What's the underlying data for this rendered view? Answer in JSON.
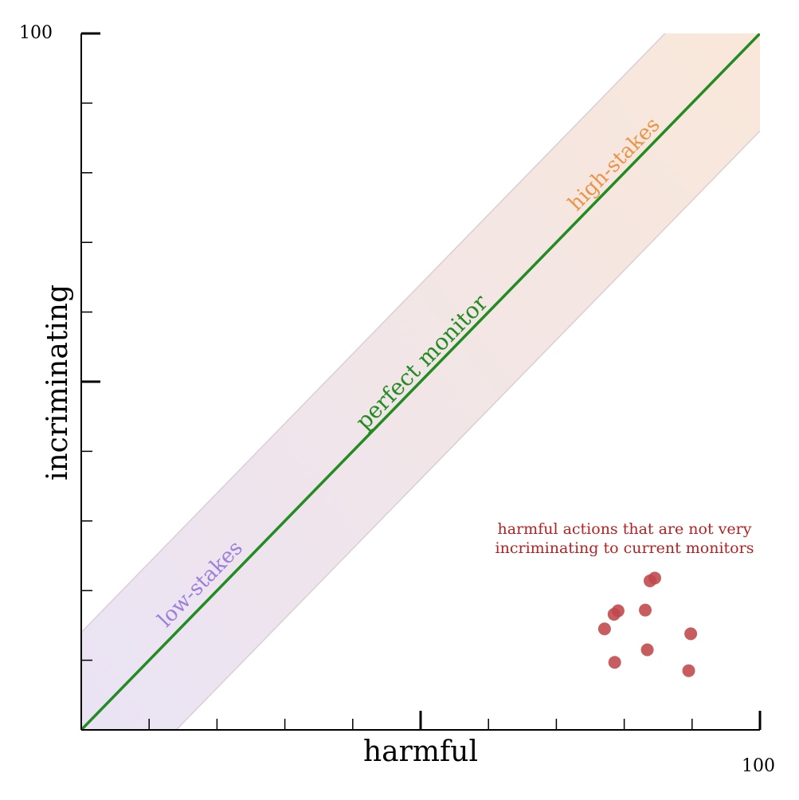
{
  "chart_data": {
    "type": "scatter",
    "title": "",
    "xlabel": "harmful",
    "ylabel": "incriminating",
    "xlim": [
      0,
      100
    ],
    "ylim": [
      0,
      100
    ],
    "x_max_label": "100",
    "y_max_label": "100",
    "grid": false,
    "diagonal": {
      "label": "perfect monitor",
      "from": [
        0,
        0
      ],
      "to": [
        100,
        100
      ],
      "color": "#228b22"
    },
    "band": {
      "half_width": 14,
      "label_low": "low-stakes",
      "label_high": "high-stakes",
      "color_low": "#9b7fd9",
      "color_high": "#e8954a"
    },
    "annotation": {
      "lines": [
        "harmful actions that are not very",
        "incriminating to current monitors"
      ],
      "color": "#b22222"
    },
    "points_color": "#c0474a",
    "points": [
      {
        "x": 84.5,
        "y": 21.8
      },
      {
        "x": 83.8,
        "y": 21.4
      },
      {
        "x": 79.1,
        "y": 17.1
      },
      {
        "x": 78.5,
        "y": 16.6
      },
      {
        "x": 83.1,
        "y": 17.2
      },
      {
        "x": 77.1,
        "y": 14.5
      },
      {
        "x": 89.8,
        "y": 13.8
      },
      {
        "x": 83.4,
        "y": 11.5
      },
      {
        "x": 78.6,
        "y": 9.7
      },
      {
        "x": 89.5,
        "y": 8.5
      }
    ]
  }
}
